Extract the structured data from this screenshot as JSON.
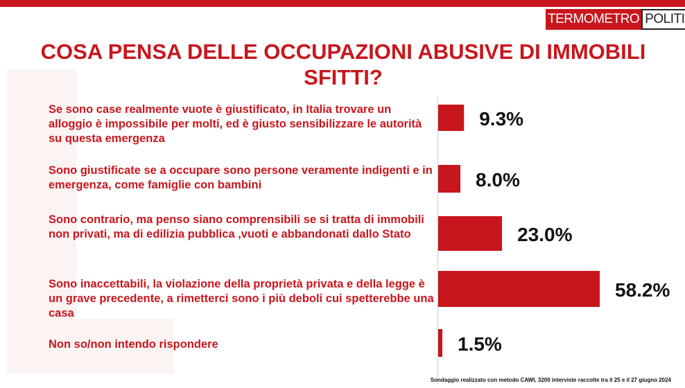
{
  "logo": {
    "part1": "TERMOMETRO",
    "part2": "POLITICO"
  },
  "chart_data": {
    "type": "bar",
    "orientation": "horizontal",
    "title": "COSA PENSA DELLE OCCUPAZIONI ABUSIVE DI IMMOBILI SFITTI?",
    "categories": [
      "Se sono case realmente vuote è giustificato, in Italia trovare un alloggio è impossibile per molti, ed è giusto sensibilizzare le autorità  su questa emergenza",
      "Sono giustificate se a occupare sono persone veramente indigenti e in emergenza, come famiglie con bambini",
      "Sono contrario, ma penso siano comprensibili se si tratta di immobili non privati, ma di edilizia pubblica ,vuoti e abbandonati dallo Stato",
      "Sono inaccettabili, la violazione della proprietà privata e della legge è un grave precedente, a rimetterci sono i più deboli cui spetterebbe una casa",
      "Non so/non intendo rispondere"
    ],
    "values": [
      9.3,
      8.0,
      23.0,
      58.2,
      1.5
    ],
    "value_labels": [
      "9.3%",
      "8.0%",
      "23.0%",
      "58.2%",
      "1.5%"
    ],
    "bar_color": "#c8161d",
    "label_color": "#c8161d",
    "xlim": [
      0,
      60
    ],
    "grid": false,
    "legend": "none"
  },
  "footnote": "Sondaggio realizzato con metodo CAWI, 3200 interviste raccolte tra il 25 e il 27 giugno 2024"
}
